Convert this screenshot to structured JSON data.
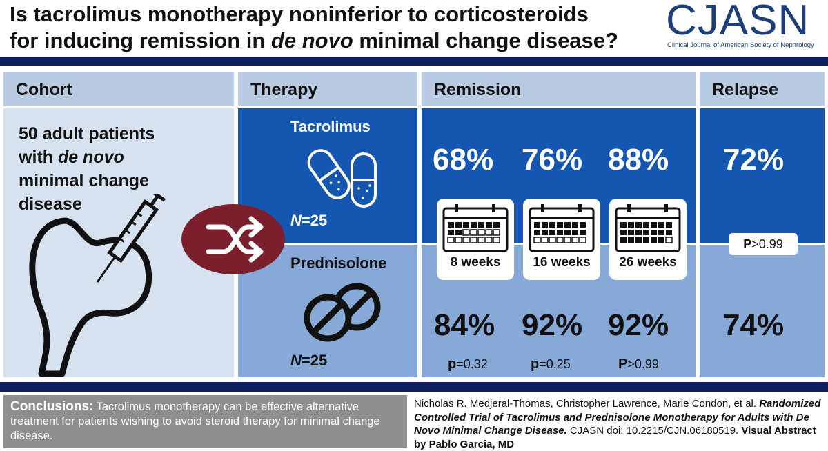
{
  "title": {
    "line1": "Is tacrolimus monotherapy noninferior to corticosteroids",
    "line2_pre": "for inducing remission in ",
    "line2_italic": "de novo",
    "line2_post": " minimal change disease?"
  },
  "logo": {
    "word": "CJASN",
    "subtitle": "Clinical Journal of American Society of Nephrology"
  },
  "columns": {
    "cohort": "Cohort",
    "therapy": "Therapy",
    "remission": "Remission",
    "relapse": "Relapse"
  },
  "cohort": {
    "line1": "50 adult patients",
    "line2_pre": "with ",
    "line2_italic": "de novo",
    "line3": "minimal change",
    "line4": "disease"
  },
  "tacrolimus": {
    "label": "Tacrolimus",
    "n_prefix": "N",
    "n_value": "=25",
    "remission": [
      "68%",
      "76%",
      "88%"
    ],
    "relapse": "72%"
  },
  "prednisolone": {
    "label": "Prednisolone",
    "n_prefix": "N",
    "n_value": "=25",
    "remission": [
      "84%",
      "92%",
      "92%"
    ],
    "relapse": "74%"
  },
  "timepoints": [
    "8 weeks",
    "16 weeks",
    "26 weeks"
  ],
  "pvalues": [
    {
      "sym": "p",
      "val": "=0.32"
    },
    {
      "sym": "p",
      "val": "=0.25"
    },
    {
      "sym": "P",
      "val": ">0.99"
    }
  ],
  "relapse_p": {
    "sym": "P",
    "val": ">0.99"
  },
  "conclusions": {
    "label": "Conclusions:",
    "text": " Tacrolimus monotherapy can be effective alternative treatment for patients wishing to avoid steroid therapy for minimal change disease."
  },
  "citation": {
    "authors": "Nicholas R. Medjeral-Thomas, Christopher Lawrence, Marie Condon, et al. ",
    "title": "Randomized Controlled Trial of Tacrolimus and Prednisolone Monotherapy for Adults with De Novo Minimal Change Disease.",
    "doi": " CJASN doi: 10.2215/CJN.06180519. ",
    "credit": "Visual Abstract by Pablo Garcia, MD"
  },
  "colors": {
    "navy": "#0d1f5c",
    "dark_blue": "#1557b0",
    "light_blue": "#87a9d8",
    "header_blue": "#b8cbe3",
    "cohort_bg": "#d7e2f0",
    "maroon": "#7a1f2b"
  },
  "icons": [
    "capsule-icon",
    "tablet-icon",
    "calendar-icon",
    "shuffle-icon",
    "kidney-syringe-icon"
  ]
}
